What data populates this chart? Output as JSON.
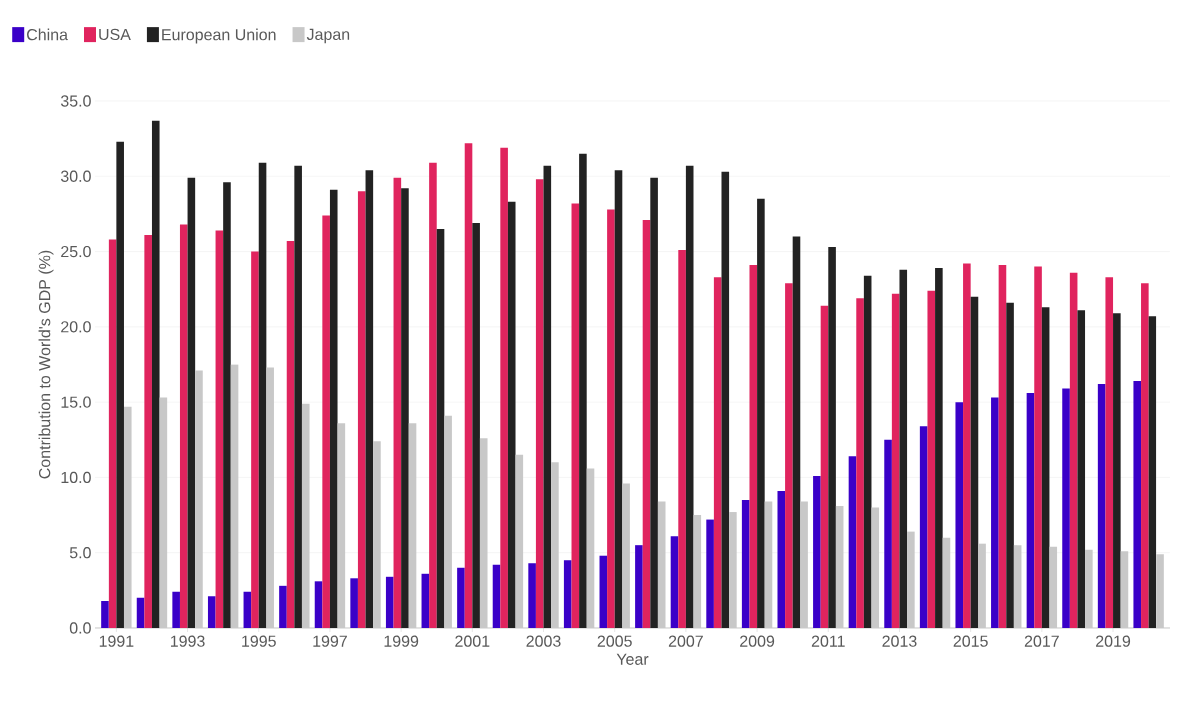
{
  "chart_data": {
    "type": "bar",
    "xlabel": "Year",
    "ylabel": "Contribution to World's GDP (%)",
    "categories": [
      "1991",
      null,
      "1993",
      null,
      "1995",
      null,
      "1997",
      null,
      "1999",
      null,
      "2001",
      null,
      "2003",
      null,
      "2005",
      null,
      "2007",
      null,
      "2009",
      null,
      "2011",
      null,
      "2013",
      null,
      "2015",
      null,
      "2017",
      null,
      "2019",
      null
    ],
    "series": [
      {
        "name": "China",
        "color": "#3a00c8",
        "values": [
          1.8,
          2.0,
          2.4,
          2.1,
          2.4,
          2.8,
          3.1,
          3.3,
          3.4,
          3.6,
          4.0,
          4.2,
          4.3,
          4.5,
          4.8,
          5.5,
          6.1,
          7.2,
          8.5,
          9.1,
          10.1,
          11.4,
          12.5,
          13.4,
          15.0,
          15.3,
          15.6,
          15.9,
          16.2,
          16.4
        ]
      },
      {
        "name": "USA",
        "color": "#e0245e",
        "values": [
          25.8,
          26.1,
          26.8,
          26.4,
          25.0,
          25.7,
          27.4,
          29.0,
          29.9,
          30.9,
          32.2,
          31.9,
          29.8,
          28.2,
          27.8,
          27.1,
          25.1,
          23.3,
          24.1,
          22.9,
          21.4,
          21.9,
          22.2,
          22.4,
          24.2,
          24.1,
          24.0,
          23.6,
          23.3,
          22.9
        ]
      },
      {
        "name": "European Union",
        "color": "#222222",
        "values": [
          32.3,
          33.7,
          29.9,
          29.6,
          30.9,
          30.7,
          29.1,
          30.4,
          29.2,
          26.5,
          26.9,
          28.3,
          30.7,
          31.5,
          30.4,
          29.9,
          30.7,
          30.3,
          28.5,
          26.0,
          25.3,
          23.4,
          23.8,
          23.9,
          22.0,
          21.6,
          21.3,
          21.1,
          20.9,
          20.7
        ]
      },
      {
        "name": "Japan",
        "color": "#c8c8c8",
        "values": [
          14.7,
          15.3,
          17.1,
          17.5,
          17.3,
          14.9,
          13.6,
          12.4,
          13.6,
          14.1,
          12.6,
          11.5,
          11.0,
          10.6,
          9.6,
          8.4,
          7.5,
          7.7,
          8.4,
          8.4,
          8.1,
          8.0,
          6.4,
          6.0,
          5.6,
          5.5,
          5.4,
          5.2,
          5.1,
          4.9
        ]
      }
    ],
    "ylim": [
      0,
      35
    ],
    "yticks": [
      {
        "value": 0,
        "label": "0.0"
      },
      {
        "value": 5,
        "label": "5.0"
      },
      {
        "value": 10,
        "label": "10.0"
      },
      {
        "value": 15,
        "label": "15.0"
      },
      {
        "value": 20,
        "label": "20.0"
      },
      {
        "value": 25,
        "label": "25.0"
      },
      {
        "value": 30,
        "label": "30.0"
      },
      {
        "value": 35,
        "label": "35.0"
      }
    ],
    "grid": "y",
    "legend": "top left"
  }
}
